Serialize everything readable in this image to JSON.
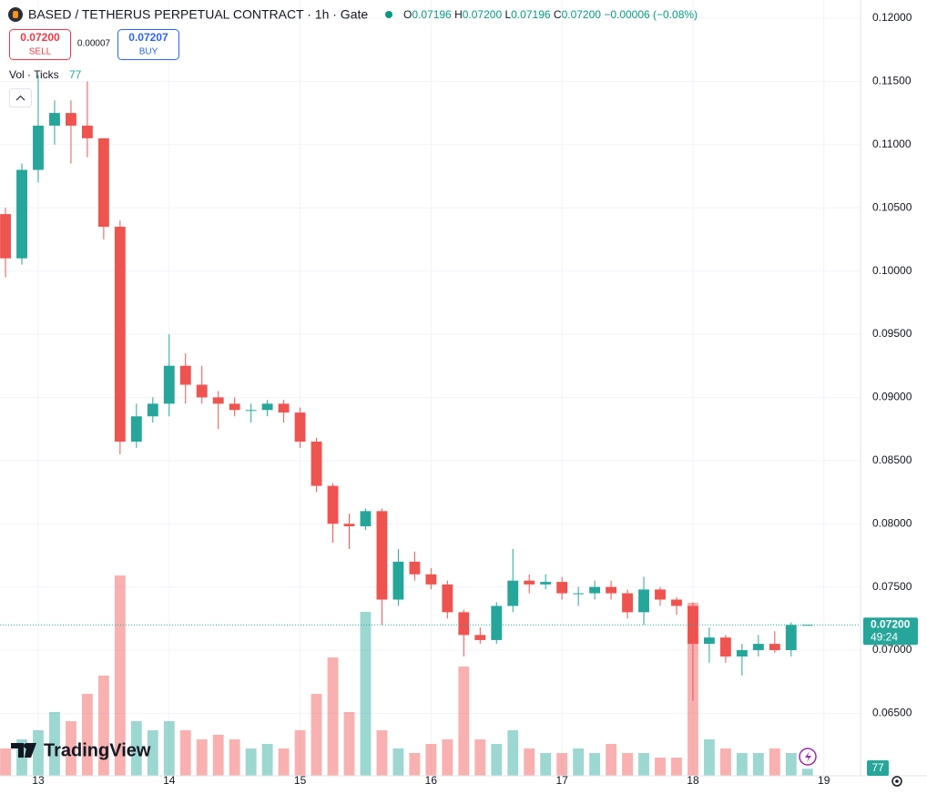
{
  "chart_data": {
    "type": "candlestick",
    "title": "BASED / TETHERUS PERPETUAL CONTRACT · 1h · Gate",
    "ohlc_labels": [
      "O",
      "H",
      "L",
      "C"
    ],
    "ohlc_values": [
      "0.07196",
      "0.07200",
      "0.07196",
      "0.07200"
    ],
    "change": "−0.00006 (−0.08%)",
    "sell_price": "0.07200",
    "sell_label": "SELL",
    "spread": "0.00007",
    "buy_price": "0.07207",
    "buy_label": "BUY",
    "volume_title": "Vol · Ticks",
    "volume_label": "77",
    "last_price_label": "0.07200",
    "countdown": "49:24",
    "brand": "TradingView",
    "up_color": "#26a69a",
    "down_color": "#ef5350",
    "grid": true,
    "x": [
      12.75,
      12.875,
      13,
      13.125,
      13.25,
      13.375,
      13.5,
      13.625,
      13.75,
      13.875,
      14,
      14.125,
      14.25,
      14.375,
      14.5,
      14.625,
      14.75,
      14.875,
      15,
      15.125,
      15.25,
      15.375,
      15.5,
      15.625,
      15.75,
      15.875,
      16,
      16.125,
      16.25,
      16.375,
      16.5,
      16.625,
      16.75,
      16.875,
      17,
      17.125,
      17.25,
      17.375,
      17.5,
      17.625,
      17.75,
      17.875,
      18,
      18.125,
      18.25,
      18.375,
      18.5,
      18.625,
      18.75,
      18.875
    ],
    "open": [
      0.1045,
      0.101,
      0.108,
      0.1115,
      0.1125,
      0.1115,
      0.1105,
      0.1035,
      0.0865,
      0.0885,
      0.0895,
      0.0925,
      0.091,
      0.09,
      0.0895,
      0.089,
      0.089,
      0.0895,
      0.0888,
      0.0865,
      0.083,
      0.08,
      0.0798,
      0.081,
      0.074,
      0.077,
      0.076,
      0.0752,
      0.073,
      0.0712,
      0.0708,
      0.0735,
      0.0755,
      0.0752,
      0.0754,
      0.0745,
      0.0745,
      0.075,
      0.0745,
      0.073,
      0.0748,
      0.074,
      0.0735,
      0.0705,
      0.071,
      0.0695,
      0.07,
      0.0705,
      0.07,
      0.07196
    ],
    "high": [
      0.105,
      0.1085,
      0.1155,
      0.1135,
      0.1135,
      0.115,
      0.1105,
      0.104,
      0.0895,
      0.09,
      0.095,
      0.0935,
      0.0925,
      0.0905,
      0.09,
      0.0895,
      0.0898,
      0.0898,
      0.0892,
      0.0868,
      0.0832,
      0.0808,
      0.0812,
      0.0812,
      0.078,
      0.0778,
      0.0765,
      0.0755,
      0.0732,
      0.0718,
      0.0738,
      0.078,
      0.076,
      0.076,
      0.0758,
      0.075,
      0.0755,
      0.0755,
      0.0748,
      0.0758,
      0.075,
      0.0742,
      0.0738,
      0.0718,
      0.0712,
      0.0705,
      0.0712,
      0.0715,
      0.0722,
      0.072
    ],
    "low": [
      0.0995,
      0.1005,
      0.107,
      0.11,
      0.1085,
      0.109,
      0.1025,
      0.0855,
      0.086,
      0.088,
      0.0885,
      0.0895,
      0.0895,
      0.0875,
      0.0885,
      0.088,
      0.0885,
      0.088,
      0.086,
      0.0825,
      0.0785,
      0.078,
      0.0795,
      0.072,
      0.0735,
      0.0755,
      0.0748,
      0.0725,
      0.0695,
      0.0705,
      0.0705,
      0.073,
      0.0745,
      0.0748,
      0.074,
      0.0735,
      0.074,
      0.074,
      0.0725,
      0.072,
      0.0735,
      0.0728,
      0.066,
      0.069,
      0.069,
      0.068,
      0.0695,
      0.0698,
      0.0695,
      0.07196
    ],
    "close": [
      0.101,
      0.108,
      0.1115,
      0.1125,
      0.1115,
      0.1105,
      0.1035,
      0.0865,
      0.0885,
      0.0895,
      0.0925,
      0.091,
      0.09,
      0.0895,
      0.089,
      0.089,
      0.0895,
      0.0888,
      0.0865,
      0.083,
      0.08,
      0.0798,
      0.081,
      0.074,
      0.077,
      0.076,
      0.0752,
      0.073,
      0.0712,
      0.0708,
      0.0735,
      0.0755,
      0.0752,
      0.0754,
      0.0745,
      0.0745,
      0.075,
      0.0745,
      0.073,
      0.0748,
      0.074,
      0.0735,
      0.0705,
      0.071,
      0.0695,
      0.07,
      0.0705,
      0.07,
      0.072,
      0.072
    ],
    "volume": [
      300,
      400,
      500,
      700,
      600,
      900,
      1100,
      2200,
      600,
      500,
      600,
      500,
      400,
      450,
      400,
      300,
      350,
      300,
      500,
      900,
      1300,
      700,
      1800,
      500,
      300,
      250,
      350,
      400,
      1200,
      400,
      350,
      500,
      300,
      250,
      250,
      300,
      250,
      350,
      250,
      250,
      200,
      200,
      1900,
      400,
      300,
      250,
      250,
      300,
      250,
      77
    ],
    "xlim": [
      12.708,
      19.28
    ],
    "xticks": [
      13,
      14,
      15,
      16,
      17,
      18,
      19
    ],
    "ylim": [
      0.06006,
      0.12144
    ],
    "yticks": [
      {
        "value": 0.065,
        "label": "0.06500"
      },
      {
        "value": 0.07,
        "label": "0.07000"
      },
      {
        "value": 0.075,
        "label": "0.07500"
      },
      {
        "value": 0.08,
        "label": "0.08000"
      },
      {
        "value": 0.085,
        "label": "0.08500"
      },
      {
        "value": 0.09,
        "label": "0.09000"
      },
      {
        "value": 0.095,
        "label": "0.09500"
      },
      {
        "value": 0.1,
        "label": "0.10000"
      },
      {
        "value": 0.105,
        "label": "0.10500"
      },
      {
        "value": 0.11,
        "label": "0.11000"
      },
      {
        "value": 0.115,
        "label": "0.11500"
      },
      {
        "value": 0.12,
        "label": "0.12000"
      }
    ]
  }
}
